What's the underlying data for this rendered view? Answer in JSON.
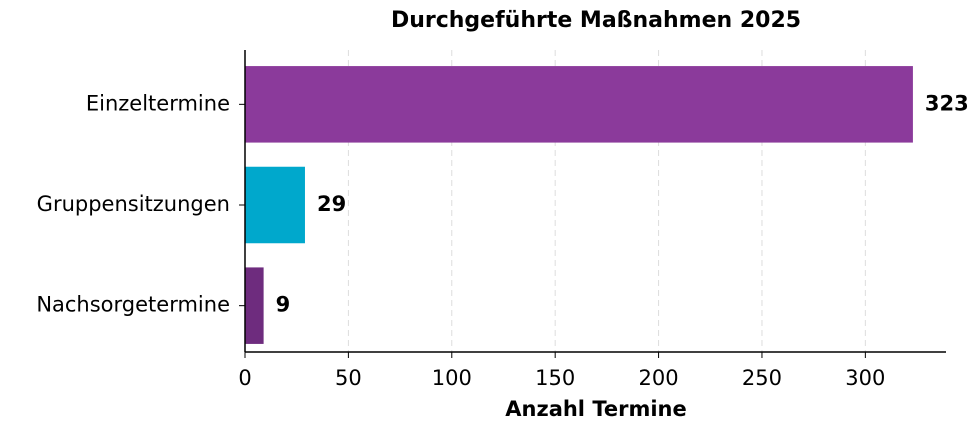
{
  "chart_data": {
    "type": "barh",
    "title": "Durchgeführte Maßnahmen 2025",
    "x_label": "Anzahl Termine",
    "categories": [
      "Einzeltermine",
      "Gruppensitzungen",
      "Nachsorgetermine"
    ],
    "values": [
      323,
      29,
      9
    ],
    "colors": [
      "#8b3a9b",
      "#00a8cc",
      "#6e2c7e"
    ],
    "xlim": [
      0,
      339
    ],
    "xticks": [
      0,
      50,
      100,
      150,
      200,
      250,
      300
    ],
    "grid": true
  }
}
